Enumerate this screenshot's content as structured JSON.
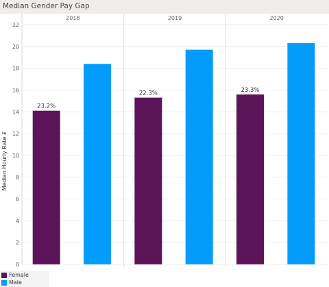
{
  "header": {
    "title": "Median Gender Pay Gap"
  },
  "chart_data": {
    "type": "bar",
    "ylabel": "Median Hourly Rate £",
    "ylim": [
      0,
      22
    ],
    "yticks": [
      0,
      2,
      4,
      6,
      8,
      10,
      12,
      14,
      16,
      18,
      20,
      22
    ],
    "grid": true,
    "legend_position": "bottom-left",
    "categories": [
      "2018",
      "2019",
      "2020"
    ],
    "series": [
      {
        "name": "Female",
        "color": "#5c1458",
        "values": [
          14.1,
          15.3,
          15.6
        ]
      },
      {
        "name": "Male",
        "color": "#039cfb",
        "values": [
          18.4,
          19.7,
          20.3
        ]
      }
    ],
    "annotations": [
      "23.2%",
      "22.3%",
      "23.3%"
    ]
  }
}
